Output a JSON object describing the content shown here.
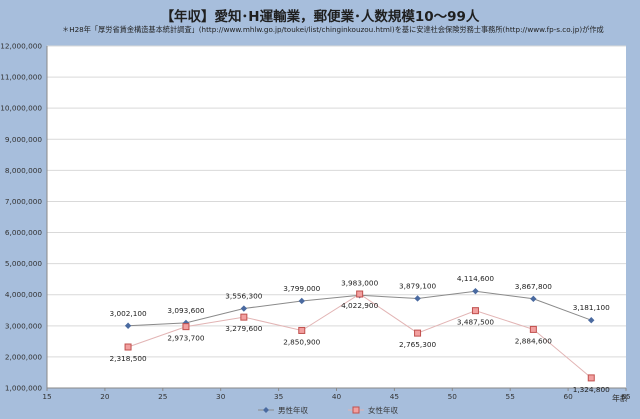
{
  "chart_data": {
    "type": "line",
    "title": "【年収】愛知･H運輸業，郵便業･人数規模10～99人",
    "subtitle": "＊H28年「厚労省賃金構造基本統計調査」(http://www.mhlw.go.jp/toukei/list/chinginkouzou.html)を基に安達社会保険労務士事務所(http://www.fp-s.co.jp)が作成",
    "xlabel": "年齢",
    "ylabel": "",
    "xlim": [
      15,
      65
    ],
    "ylim": [
      1000000,
      12000000
    ],
    "xticks": [
      15,
      20,
      25,
      30,
      35,
      40,
      45,
      50,
      55,
      60,
      65
    ],
    "yticks": [
      1000000,
      2000000,
      3000000,
      4000000,
      5000000,
      6000000,
      7000000,
      8000000,
      9000000,
      10000000,
      11000000,
      12000000
    ],
    "xtick_labels": [
      "15",
      "20",
      "25",
      "30",
      "35",
      "40",
      "45",
      "50",
      "55",
      "60",
      "65"
    ],
    "ytick_labels": [
      "1,000,000",
      "2,000,000",
      "3,000,000",
      "4,000,000",
      "5,000,000",
      "6,000,000",
      "7,000,000",
      "8,000,000",
      "9,000,000",
      "10,000,000",
      "11,000,000",
      "12,000,000"
    ],
    "grid": "horizontal",
    "legend": "bottom",
    "series": [
      {
        "name": "男性年収",
        "color": "#4a6aa0",
        "marker": "diamond",
        "x": [
          22,
          27,
          32,
          37,
          42,
          47,
          52,
          57,
          62
        ],
        "values": [
          3002100,
          3093600,
          3556300,
          3799000,
          3983000,
          3879100,
          4114600,
          3867800,
          3181100
        ],
        "labels": [
          "3,002,100",
          "3,093,600",
          "3,556,300",
          "3,799,000",
          "3,983,000",
          "3,879,100",
          "4,114,600",
          "3,867,800",
          "3,181,100"
        ]
      },
      {
        "name": "女性年収",
        "color": "#c0504d",
        "marker": "square",
        "x": [
          22,
          27,
          32,
          37,
          42,
          47,
          52,
          57,
          62
        ],
        "values": [
          2318500,
          2973700,
          3279600,
          2850900,
          4022900,
          2765300,
          3487500,
          2884600,
          1324800
        ],
        "labels": [
          "2,318,500",
          "2,973,700",
          "3,279,600",
          "2,850,900",
          "4,022,900",
          "2,765,300",
          "3,487,500",
          "2,884,600",
          "1,324,800"
        ]
      }
    ]
  }
}
